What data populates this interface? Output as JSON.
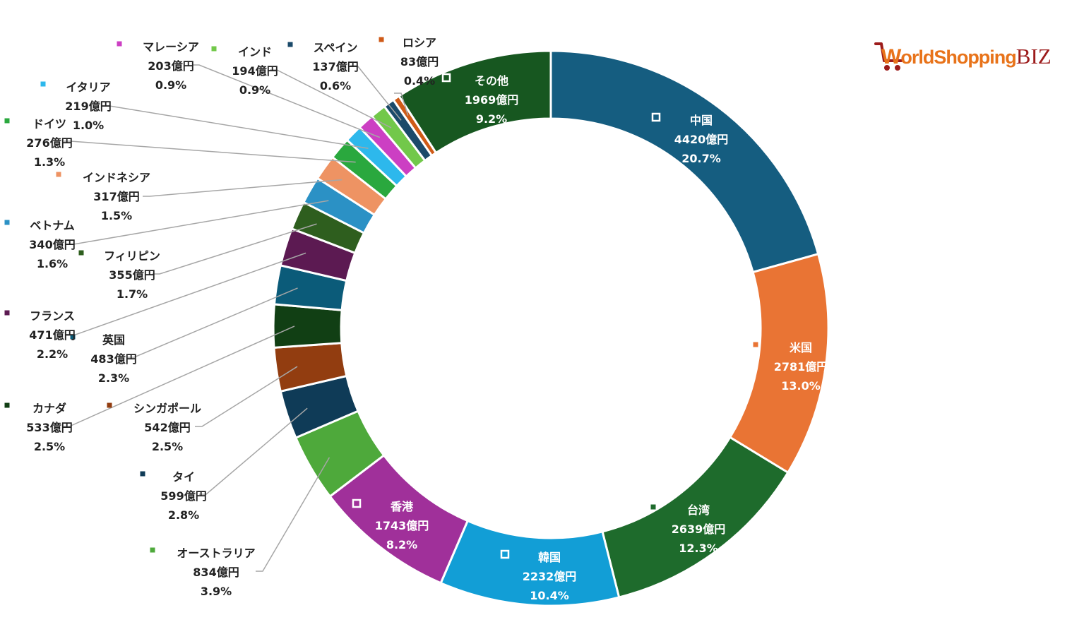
{
  "logo": {
    "w": "W",
    "rest": "orldShopping",
    "biz": "BIZ"
  },
  "chart_data": {
    "type": "pie",
    "subtype": "donut",
    "title": "",
    "unit": "億円",
    "series": [
      {
        "name": "中国",
        "value": 4420,
        "value_label": "4420億円",
        "percent": "20.7%",
        "color": "#155d80",
        "label_pos": "inside",
        "marker": "hollow"
      },
      {
        "name": "米国",
        "value": 2781,
        "value_label": "2781億円",
        "percent": "13.0%",
        "color": "#e97434",
        "label_pos": "inside",
        "marker": "filled"
      },
      {
        "name": "台湾",
        "value": 2639,
        "value_label": "2639億円",
        "percent": "12.3%",
        "color": "#1e6b2c",
        "label_pos": "inside",
        "marker": "filled"
      },
      {
        "name": "韓国",
        "value": 2232,
        "value_label": "2232億円",
        "percent": "10.4%",
        "color": "#129ed6",
        "label_pos": "inside",
        "marker": "hollow"
      },
      {
        "name": "香港",
        "value": 1743,
        "value_label": "1743億円",
        "percent": "8.2%",
        "color": "#a0309a",
        "label_pos": "inside",
        "marker": "hollow"
      },
      {
        "name": "オーストラリア",
        "value": 834,
        "value_label": "834億円",
        "percent": "3.9%",
        "color": "#4ea93b",
        "label_pos": "outside"
      },
      {
        "name": "タイ",
        "value": 599,
        "value_label": "599億円",
        "percent": "2.8%",
        "color": "#0f3b57",
        "label_pos": "outside"
      },
      {
        "name": "シンガポール",
        "value": 542,
        "value_label": "542億円",
        "percent": "2.5%",
        "color": "#923d10",
        "label_pos": "outside"
      },
      {
        "name": "カナダ",
        "value": 533,
        "value_label": "533億円",
        "percent": "2.5%",
        "color": "#113f14",
        "label_pos": "outside"
      },
      {
        "name": "英国",
        "value": 483,
        "value_label": "483億円",
        "percent": "2.3%",
        "color": "#0b5b79",
        "label_pos": "outside"
      },
      {
        "name": "フランス",
        "value": 471,
        "value_label": "471億円",
        "percent": "2.2%",
        "color": "#5c1a52",
        "label_pos": "outside"
      },
      {
        "name": "フィリピン",
        "value": 355,
        "value_label": "355億円",
        "percent": "1.7%",
        "color": "#2e5e1e",
        "label_pos": "outside"
      },
      {
        "name": "ベトナム",
        "value": 340,
        "value_label": "340億円",
        "percent": "1.6%",
        "color": "#2b91c5",
        "label_pos": "outside"
      },
      {
        "name": "インドネシア",
        "value": 317,
        "value_label": "317億円",
        "percent": "1.5%",
        "color": "#ee9363",
        "label_pos": "outside"
      },
      {
        "name": "ドイツ",
        "value": 276,
        "value_label": "276億円",
        "percent": "1.3%",
        "color": "#2aa83e",
        "label_pos": "outside"
      },
      {
        "name": "イタリア",
        "value": 219,
        "value_label": "219億円",
        "percent": "1.0%",
        "color": "#2db8ec",
        "label_pos": "outside"
      },
      {
        "name": "マレーシア",
        "value": 203,
        "value_label": "203億円",
        "percent": "0.9%",
        "color": "#cc3fc3",
        "label_pos": "outside"
      },
      {
        "name": "インド",
        "value": 194,
        "value_label": "194億円",
        "percent": "0.9%",
        "color": "#72c84a",
        "label_pos": "outside"
      },
      {
        "name": "スペイン",
        "value": 137,
        "value_label": "137億円",
        "percent": "0.6%",
        "color": "#1b4a6a",
        "label_pos": "outside"
      },
      {
        "name": "ロシア",
        "value": 83,
        "value_label": "83億円",
        "percent": "0.4%",
        "color": "#cf5a17",
        "label_pos": "outside"
      },
      {
        "name": "その他",
        "value": 1969,
        "value_label": "1969億円",
        "percent": "9.2%",
        "color": "#175720",
        "label_pos": "inside",
        "marker": "hollow"
      }
    ]
  }
}
